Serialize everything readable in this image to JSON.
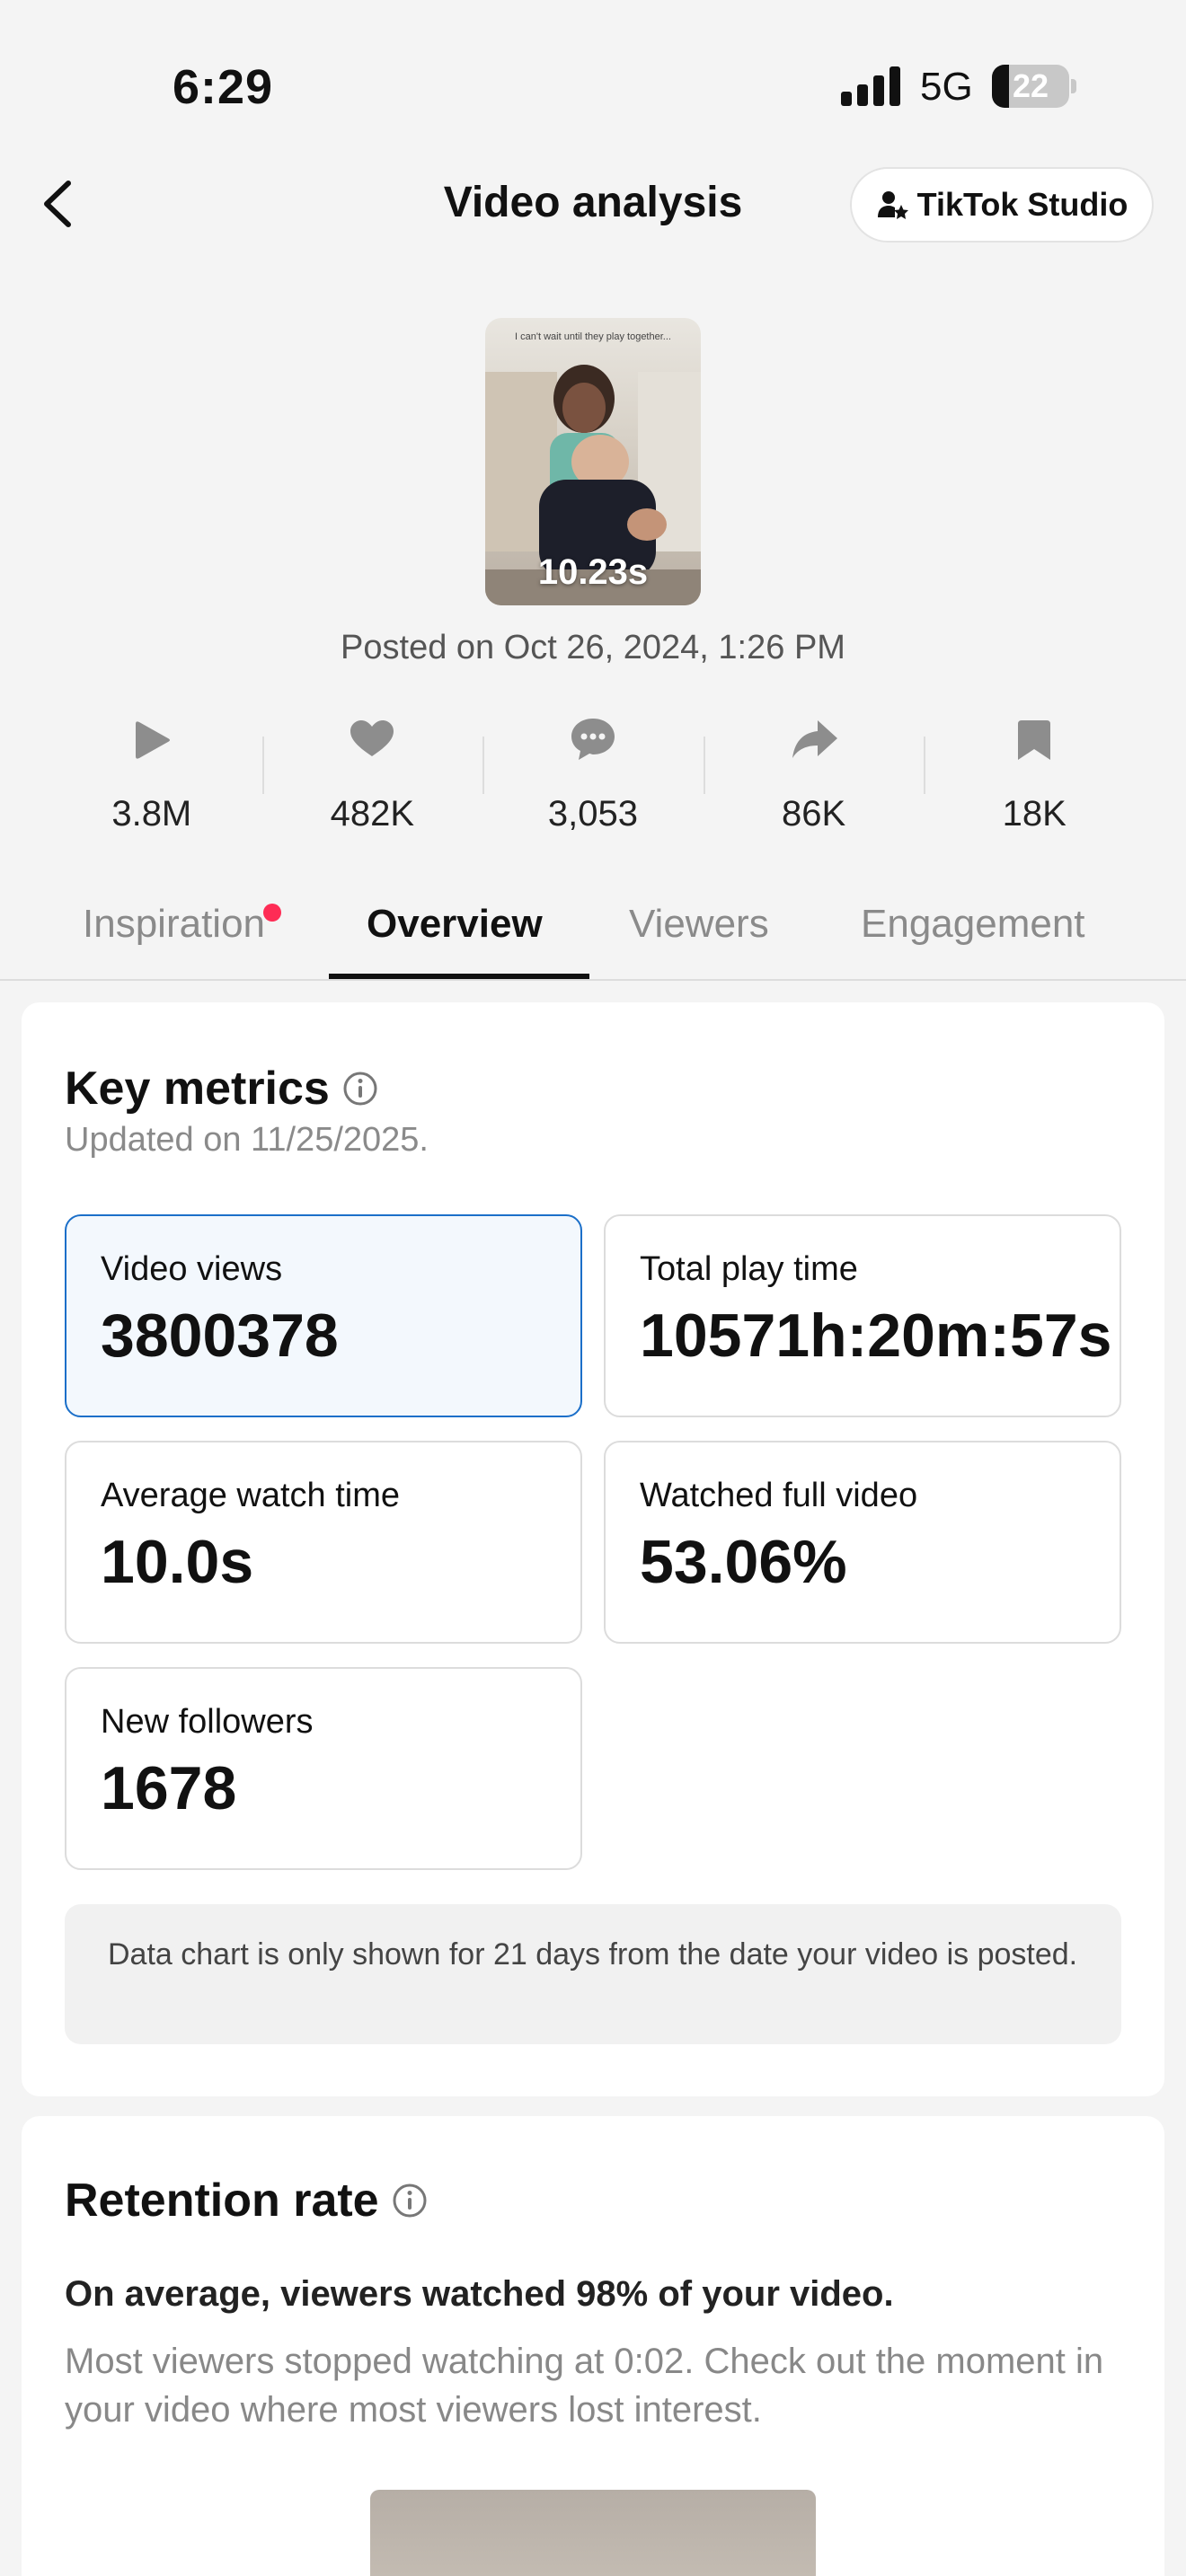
{
  "status_bar": {
    "time": "6:29",
    "network": "5G",
    "battery": "22",
    "battery_level": 0.22
  },
  "header": {
    "title": "Video analysis",
    "studio_button": "TikTok Studio"
  },
  "video": {
    "thumbnail_caption": "I can't wait until they play together...",
    "duration": "10.23s",
    "posted": "Posted on Oct 26, 2024, 1:26 PM"
  },
  "stats": [
    {
      "icon": "play-icon",
      "value": "3.8M"
    },
    {
      "icon": "heart-icon",
      "value": "482K"
    },
    {
      "icon": "comment-icon",
      "value": "3,053"
    },
    {
      "icon": "share-icon",
      "value": "86K"
    },
    {
      "icon": "bookmark-icon",
      "value": "18K"
    }
  ],
  "tabs": [
    {
      "label": "Inspiration",
      "has_dot": true
    },
    {
      "label": "Overview",
      "active": true
    },
    {
      "label": "Viewers"
    },
    {
      "label": "Engagement"
    }
  ],
  "key_metrics": {
    "title": "Key metrics",
    "updated": "Updated on 11/25/2025.",
    "metrics": [
      {
        "label": "Video views",
        "value": "3800378",
        "selected": true
      },
      {
        "label": "Total play time",
        "value": "10571h:20m:57s"
      },
      {
        "label": "Average watch time",
        "value": "10.0s"
      },
      {
        "label": "Watched full video",
        "value": "53.06%"
      },
      {
        "label": "New followers",
        "value": "1678"
      }
    ],
    "note": "Data chart is only shown for 21 days from the date your video is posted."
  },
  "retention": {
    "title": "Retention rate",
    "summary": "On average, viewers watched 98% of your video.",
    "detail": "Most viewers stopped watching at 0:02. Check out the moment in your video where most viewers lost interest."
  },
  "colors": {
    "accent": "#1b6fc9",
    "dot": "#fe2c55"
  }
}
